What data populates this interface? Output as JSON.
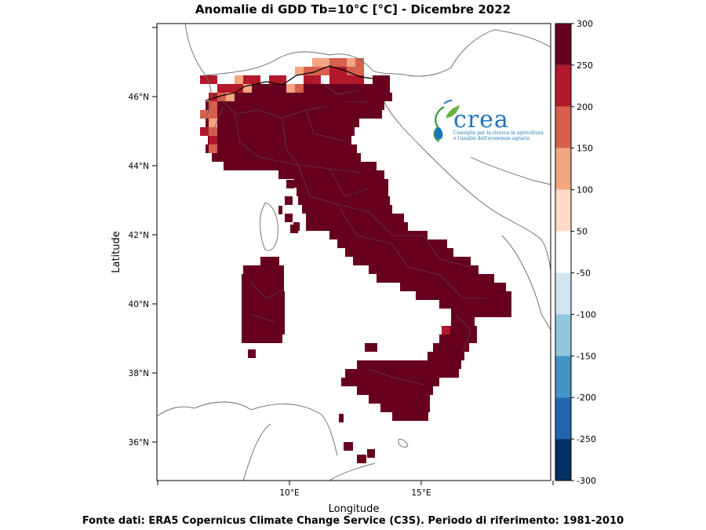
{
  "title": "Anomalie di GDD Tb=10°C [°C] - Dicembre 2022",
  "footer": "Fonte dati: ERA5 Copernicus Climate Change Service (C3S). Periodo di riferimento: 1981-2010",
  "map": {
    "xlabel": "Longitude",
    "ylabel": "Latitude",
    "lon_ticks": [
      {
        "value": 10,
        "label": "10°E"
      },
      {
        "value": 15,
        "label": "15°E"
      }
    ],
    "lat_ticks": [
      {
        "value": 46,
        "label": "46°N"
      },
      {
        "value": 44,
        "label": "44°N"
      },
      {
        "value": 42,
        "label": "42°N"
      },
      {
        "value": 40,
        "label": "40°N"
      },
      {
        "value": 38,
        "label": "38°N"
      },
      {
        "value": 36,
        "label": "36°N"
      }
    ]
  },
  "colorbar": {
    "levels": [
      300,
      250,
      200,
      150,
      100,
      50,
      -50,
      -100,
      -150,
      -200,
      -250,
      -300
    ],
    "colors": [
      "#67001f",
      "#b2182b",
      "#d6604d",
      "#f4a582",
      "#fddbc7",
      "#ffffff",
      "#d1e5f0",
      "#92c5de",
      "#4393c3",
      "#2166ac",
      "#053061"
    ]
  },
  "logo": {
    "word": "crea",
    "line1": "Consiglio per la ricerca in agricoltura",
    "line2": "e l'analisi dell'economia agraria"
  }
}
